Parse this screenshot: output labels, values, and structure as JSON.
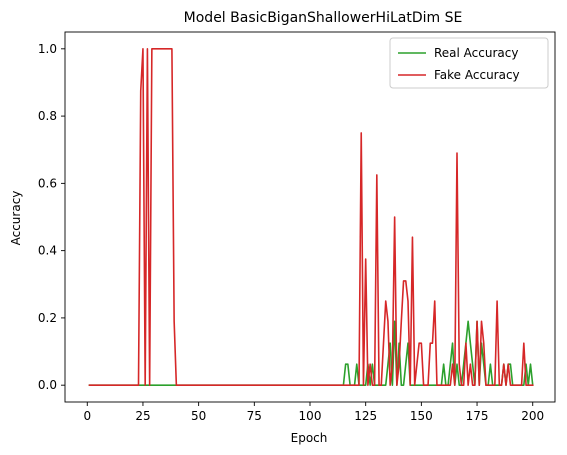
{
  "chart_data": {
    "type": "line",
    "title": "Model BasicBiganShallowerHiLatDim SE",
    "xlabel": "Epoch",
    "ylabel": "Accuracy",
    "xlim": [
      -10,
      210
    ],
    "ylim": [
      -0.05,
      1.05
    ],
    "xticks": [
      0,
      25,
      50,
      75,
      100,
      125,
      150,
      175,
      200
    ],
    "yticks": [
      0.0,
      0.2,
      0.4,
      0.6,
      0.8,
      1.0
    ],
    "ytick_labels": [
      "0.0",
      "0.2",
      "0.4",
      "0.6",
      "0.8",
      "1.0"
    ],
    "legend_position": "top-right",
    "grid": false,
    "series": [
      {
        "name": "Real Accuracy",
        "color": "#2ca02c",
        "points": [
          [
            1,
            0.0
          ],
          [
            115,
            0.0
          ],
          [
            116,
            0.0625
          ],
          [
            117,
            0.0625
          ],
          [
            118,
            0.0
          ],
          [
            119,
            0.0
          ],
          [
            120,
            0.0
          ],
          [
            121,
            0.0625
          ],
          [
            122,
            0.0
          ],
          [
            123,
            0.0
          ],
          [
            124,
            0.0
          ],
          [
            125,
            0.0
          ],
          [
            126,
            0.0625
          ],
          [
            127,
            0.0
          ],
          [
            128,
            0.0625
          ],
          [
            129,
            0.0
          ],
          [
            130,
            0.0
          ],
          [
            131,
            0.0
          ],
          [
            132,
            0.0
          ],
          [
            133,
            0.0
          ],
          [
            134,
            0.0
          ],
          [
            135,
            0.0625
          ],
          [
            136,
            0.125
          ],
          [
            137,
            0.0
          ],
          [
            138,
            0.19
          ],
          [
            139,
            0.0
          ],
          [
            140,
            0.125
          ],
          [
            141,
            0.0
          ],
          [
            142,
            0.0
          ],
          [
            143,
            0.0625
          ],
          [
            144,
            0.125
          ],
          [
            145,
            0.0
          ],
          [
            146,
            0.0
          ],
          [
            147,
            0.0
          ],
          [
            148,
            0.0
          ],
          [
            149,
            0.0
          ],
          [
            150,
            0.0
          ],
          [
            151,
            0.0
          ],
          [
            152,
            0.0
          ],
          [
            153,
            0.0
          ],
          [
            154,
            0.0
          ],
          [
            155,
            0.0
          ],
          [
            156,
            0.0
          ],
          [
            157,
            0.0
          ],
          [
            158,
            0.0
          ],
          [
            159,
            0.0
          ],
          [
            160,
            0.0625
          ],
          [
            161,
            0.0
          ],
          [
            162,
            0.0
          ],
          [
            163,
            0.0625
          ],
          [
            164,
            0.125
          ],
          [
            165,
            0.0
          ],
          [
            166,
            0.0625
          ],
          [
            167,
            0.0
          ],
          [
            168,
            0.0
          ],
          [
            169,
            0.0625
          ],
          [
            170,
            0.125
          ],
          [
            171,
            0.19
          ],
          [
            172,
            0.125
          ],
          [
            173,
            0.0625
          ],
          [
            174,
            0.0
          ],
          [
            175,
            0.19
          ],
          [
            176,
            0.0
          ],
          [
            177,
            0.125
          ],
          [
            178,
            0.0625
          ],
          [
            179,
            0.0
          ],
          [
            180,
            0.0
          ],
          [
            181,
            0.0625
          ],
          [
            182,
            0.0
          ],
          [
            183,
            0.0
          ],
          [
            184,
            0.0
          ],
          [
            185,
            0.0
          ],
          [
            186,
            0.0
          ],
          [
            187,
            0.0625
          ],
          [
            188,
            0.0
          ],
          [
            189,
            0.0625
          ],
          [
            190,
            0.0625
          ],
          [
            191,
            0.0
          ],
          [
            192,
            0.0
          ],
          [
            193,
            0.0
          ],
          [
            194,
            0.0
          ],
          [
            195,
            0.0
          ],
          [
            196,
            0.0
          ],
          [
            197,
            0.0625
          ],
          [
            198,
            0.0
          ],
          [
            199,
            0.0625
          ],
          [
            200,
            0.0
          ]
        ]
      },
      {
        "name": "Fake Accuracy",
        "color": "#d62728",
        "points": [
          [
            1,
            0.0
          ],
          [
            23,
            0.0
          ],
          [
            24,
            0.875
          ],
          [
            25,
            1.0
          ],
          [
            26,
            0.0
          ],
          [
            27,
            1.0
          ],
          [
            28,
            0.0
          ],
          [
            29,
            1.0
          ],
          [
            30,
            1.0
          ],
          [
            31,
            1.0
          ],
          [
            32,
            1.0
          ],
          [
            33,
            1.0
          ],
          [
            34,
            1.0
          ],
          [
            35,
            1.0
          ],
          [
            36,
            1.0
          ],
          [
            37,
            1.0
          ],
          [
            38,
            1.0
          ],
          [
            39,
            0.19
          ],
          [
            40,
            0.0
          ],
          [
            118,
            0.0
          ],
          [
            119,
            0.0
          ],
          [
            120,
            0.0
          ],
          [
            121,
            0.0
          ],
          [
            122,
            0.0
          ],
          [
            123,
            0.75
          ],
          [
            124,
            0.0
          ],
          [
            125,
            0.375
          ],
          [
            126,
            0.0
          ],
          [
            127,
            0.0625
          ],
          [
            128,
            0.0
          ],
          [
            129,
            0.0
          ],
          [
            130,
            0.625
          ],
          [
            131,
            0.0
          ],
          [
            132,
            0.0
          ],
          [
            133,
            0.125
          ],
          [
            134,
            0.25
          ],
          [
            135,
            0.19
          ],
          [
            136,
            0.0
          ],
          [
            137,
            0.0625
          ],
          [
            138,
            0.5
          ],
          [
            139,
            0.0
          ],
          [
            140,
            0.0625
          ],
          [
            141,
            0.19
          ],
          [
            142,
            0.31
          ],
          [
            143,
            0.31
          ],
          [
            144,
            0.25
          ],
          [
            145,
            0.0
          ],
          [
            146,
            0.44
          ],
          [
            147,
            0.0
          ],
          [
            148,
            0.0625
          ],
          [
            149,
            0.125
          ],
          [
            150,
            0.125
          ],
          [
            151,
            0.0
          ],
          [
            152,
            0.0
          ],
          [
            153,
            0.0
          ],
          [
            154,
            0.125
          ],
          [
            155,
            0.125
          ],
          [
            156,
            0.25
          ],
          [
            157,
            0.0
          ],
          [
            158,
            0.0
          ],
          [
            159,
            0.0
          ],
          [
            160,
            0.0
          ],
          [
            161,
            0.0
          ],
          [
            162,
            0.0
          ],
          [
            163,
            0.0
          ],
          [
            164,
            0.0625
          ],
          [
            165,
            0.0
          ],
          [
            166,
            0.69
          ],
          [
            167,
            0.0625
          ],
          [
            168,
            0.0
          ],
          [
            169,
            0.0
          ],
          [
            170,
            0.125
          ],
          [
            171,
            0.0
          ],
          [
            172,
            0.0625
          ],
          [
            173,
            0.0
          ],
          [
            174,
            0.0
          ],
          [
            175,
            0.19
          ],
          [
            176,
            0.0
          ],
          [
            177,
            0.19
          ],
          [
            178,
            0.125
          ],
          [
            179,
            0.0
          ],
          [
            180,
            0.0
          ],
          [
            181,
            0.0
          ],
          [
            182,
            0.0
          ],
          [
            183,
            0.0
          ],
          [
            184,
            0.25
          ],
          [
            185,
            0.0
          ],
          [
            186,
            0.0
          ],
          [
            187,
            0.0625
          ],
          [
            188,
            0.0
          ],
          [
            189,
            0.0625
          ],
          [
            190,
            0.0
          ],
          [
            191,
            0.0
          ],
          [
            192,
            0.0
          ],
          [
            193,
            0.0
          ],
          [
            194,
            0.0
          ],
          [
            195,
            0.0
          ],
          [
            196,
            0.125
          ],
          [
            197,
            0.0
          ],
          [
            198,
            0.0
          ],
          [
            199,
            0.0
          ],
          [
            200,
            0.0
          ]
        ]
      }
    ]
  }
}
